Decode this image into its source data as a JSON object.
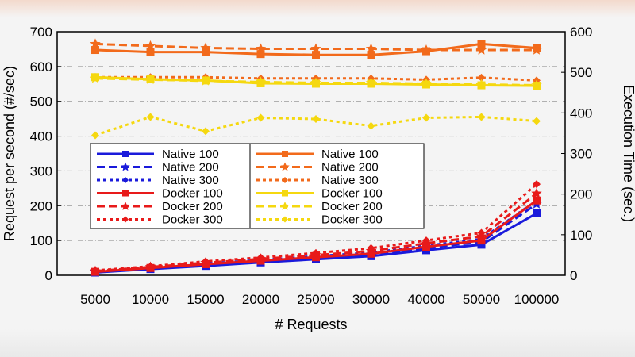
{
  "chart_data": {
    "type": "line",
    "xlabel": "# Requests",
    "ylabel": "Request per second (#/sec)",
    "y2label": "Execution Time (sec.)",
    "categories": [
      "5000",
      "10000",
      "15000",
      "20000",
      "25000",
      "30000",
      "40000",
      "50000",
      "100000"
    ],
    "ylim": [
      0,
      700
    ],
    "y2lim": [
      0,
      600
    ],
    "yticks": [
      0,
      100,
      200,
      300,
      400,
      500,
      600,
      700
    ],
    "y2ticks": [
      0,
      100,
      200,
      300,
      400,
      500,
      600
    ],
    "grid": "horizontal dash-dot",
    "legend_position": "lower-left",
    "series": [
      {
        "name": "Native 100",
        "axis": "left",
        "color": "#1a1adb",
        "dash": "solid",
        "marker": "square",
        "values": [
          8,
          18,
          27,
          37,
          46,
          55,
          72,
          88,
          178
        ]
      },
      {
        "name": "Native 200",
        "axis": "left",
        "color": "#1a1adb",
        "dash": "dash",
        "marker": "star",
        "values": [
          10,
          20,
          30,
          40,
          50,
          60,
          78,
          96,
          205
        ]
      },
      {
        "name": "Native 300",
        "axis": "left",
        "color": "#1a1adb",
        "dash": "dot",
        "marker": "diamond",
        "values": [
          12,
          22,
          33,
          44,
          55,
          65,
          85,
          104,
          215
        ]
      },
      {
        "name": "Docker 100",
        "axis": "left",
        "color": "#e81a1a",
        "dash": "solid",
        "marker": "square",
        "values": [
          10,
          21,
          32,
          42,
          52,
          62,
          82,
          100,
          215
        ]
      },
      {
        "name": "Docker 200",
        "axis": "left",
        "color": "#e81a1a",
        "dash": "dash",
        "marker": "star",
        "values": [
          12,
          24,
          36,
          47,
          58,
          70,
          92,
          112,
          235
        ]
      },
      {
        "name": "Docker 300",
        "axis": "left",
        "color": "#e81a1a",
        "dash": "dot",
        "marker": "diamond",
        "values": [
          14,
          26,
          40,
          51,
          64,
          78,
          100,
          122,
          262
        ]
      },
      {
        "name": "Native 100",
        "axis": "right",
        "color": "#f26a1b",
        "dash": "solid",
        "marker": "square",
        "values": [
          555,
          550,
          550,
          545,
          543,
          543,
          552,
          570,
          560
        ]
      },
      {
        "name": "Native 200",
        "axis": "right",
        "color": "#f26a1b",
        "dash": "dash",
        "marker": "star",
        "values": [
          570,
          565,
          560,
          558,
          558,
          558,
          555,
          555,
          555
        ]
      },
      {
        "name": "Native 300",
        "axis": "right",
        "color": "#f26a1b",
        "dash": "dot",
        "marker": "diamond",
        "values": [
          488,
          488,
          488,
          485,
          485,
          485,
          482,
          487,
          480
        ]
      },
      {
        "name": "Docker 100",
        "axis": "right",
        "color": "#f5d80f",
        "dash": "solid",
        "marker": "square",
        "values": [
          488,
          483,
          480,
          473,
          472,
          472,
          470,
          468,
          467
        ]
      },
      {
        "name": "Docker 200",
        "axis": "right",
        "color": "#f5d80f",
        "dash": "dash",
        "marker": "star",
        "values": [
          485,
          482,
          479,
          476,
          474,
          474,
          472,
          470,
          468
        ]
      },
      {
        "name": "Docker 300",
        "axis": "right",
        "color": "#f5d80f",
        "dash": "dot",
        "marker": "diamond",
        "values": [
          345,
          390,
          355,
          388,
          385,
          368,
          388,
          390,
          380
        ]
      }
    ]
  }
}
